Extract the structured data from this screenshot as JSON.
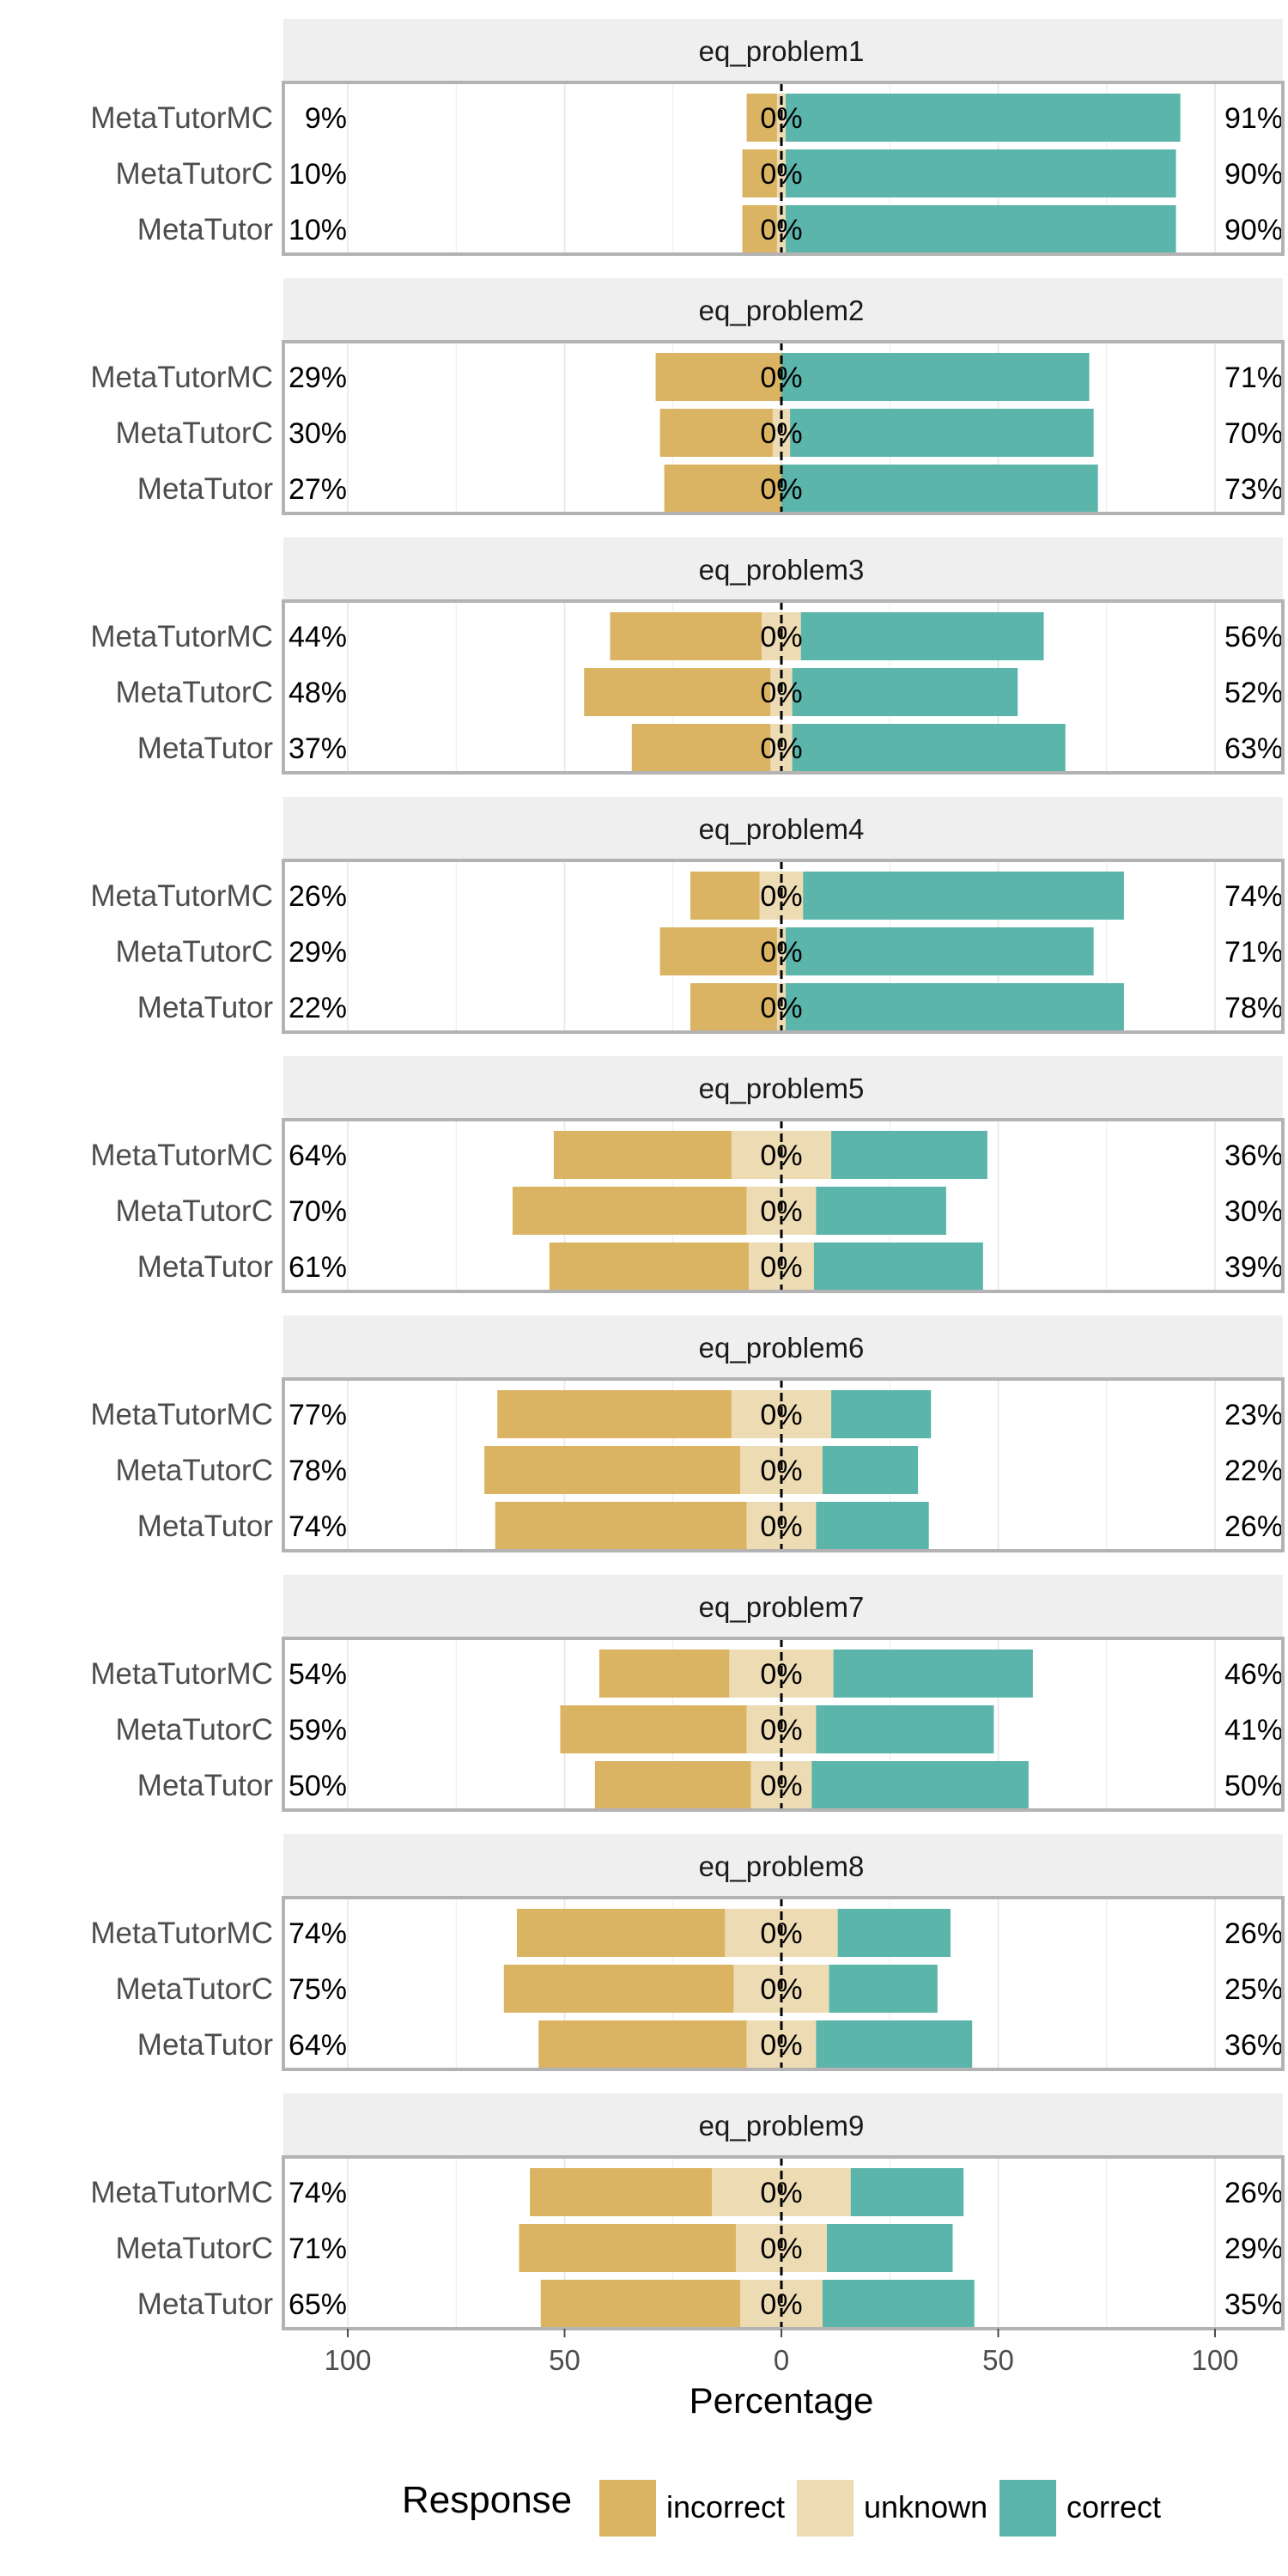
{
  "chart_data": {
    "type": "bar",
    "orientation": "horizontal",
    "stacked": "diverging",
    "xlabel": "Percentage",
    "xlim": [
      -115,
      115
    ],
    "xticks": [
      -100,
      -50,
      0,
      50,
      100
    ],
    "xtick_labels": [
      "100",
      "50",
      "0",
      "50",
      "100"
    ],
    "grid": true,
    "legend": {
      "title": "Response",
      "position": "bottom",
      "entries": [
        "incorrect",
        "unknown",
        "correct"
      ]
    },
    "colors": {
      "incorrect": "#DBB463",
      "unknown": "#EDDBB4",
      "correct": "#5BB5AA",
      "strip_bg": "#EFEFEF",
      "panel_border": "#B3B3B3",
      "grid": "#EBEBEB"
    },
    "categories": [
      "MetaTutorMC",
      "MetaTutorC",
      "MetaTutor"
    ],
    "panels": [
      {
        "title": "eq_problem1",
        "rows": [
          {
            "category": "MetaTutorMC",
            "incorrect": 7,
            "unknown": 2,
            "correct": 91,
            "left_label": "9%",
            "center_label": "0%",
            "right_label": "91%"
          },
          {
            "category": "MetaTutorC",
            "incorrect": 8,
            "unknown": 2,
            "correct": 90,
            "left_label": "10%",
            "center_label": "0%",
            "right_label": "90%"
          },
          {
            "category": "MetaTutor",
            "incorrect": 8,
            "unknown": 2,
            "correct": 90,
            "left_label": "10%",
            "center_label": "0%",
            "right_label": "90%"
          }
        ]
      },
      {
        "title": "eq_problem2",
        "rows": [
          {
            "category": "MetaTutorMC",
            "incorrect": 29,
            "unknown": 0,
            "correct": 71,
            "left_label": "29%",
            "center_label": "0%",
            "right_label": "71%"
          },
          {
            "category": "MetaTutorC",
            "incorrect": 26,
            "unknown": 4,
            "correct": 70,
            "left_label": "30%",
            "center_label": "0%",
            "right_label": "70%"
          },
          {
            "category": "MetaTutor",
            "incorrect": 27,
            "unknown": 0,
            "correct": 73,
            "left_label": "27%",
            "center_label": "0%",
            "right_label": "73%"
          }
        ]
      },
      {
        "title": "eq_problem3",
        "rows": [
          {
            "category": "MetaTutorMC",
            "incorrect": 35,
            "unknown": 9,
            "correct": 56,
            "left_label": "44%",
            "center_label": "0%",
            "right_label": "56%"
          },
          {
            "category": "MetaTutorC",
            "incorrect": 43,
            "unknown": 5,
            "correct": 52,
            "left_label": "48%",
            "center_label": "0%",
            "right_label": "52%"
          },
          {
            "category": "MetaTutor",
            "incorrect": 32,
            "unknown": 5,
            "correct": 63,
            "left_label": "37%",
            "center_label": "0%",
            "right_label": "63%"
          }
        ]
      },
      {
        "title": "eq_problem4",
        "rows": [
          {
            "category": "MetaTutorMC",
            "incorrect": 16,
            "unknown": 10,
            "correct": 74,
            "left_label": "26%",
            "center_label": "0%",
            "right_label": "74%"
          },
          {
            "category": "MetaTutorC",
            "incorrect": 27,
            "unknown": 2,
            "correct": 71,
            "left_label": "29%",
            "center_label": "0%",
            "right_label": "71%"
          },
          {
            "category": "MetaTutor",
            "incorrect": 20,
            "unknown": 2,
            "correct": 78,
            "left_label": "22%",
            "center_label": "0%",
            "right_label": "78%"
          }
        ]
      },
      {
        "title": "eq_problem5",
        "rows": [
          {
            "category": "MetaTutorMC",
            "incorrect": 41,
            "unknown": 23,
            "correct": 36,
            "left_label": "64%",
            "center_label": "0%",
            "right_label": "36%"
          },
          {
            "category": "MetaTutorC",
            "incorrect": 54,
            "unknown": 16,
            "correct": 30,
            "left_label": "70%",
            "center_label": "0%",
            "right_label": "30%"
          },
          {
            "category": "MetaTutor",
            "incorrect": 46,
            "unknown": 15,
            "correct": 39,
            "left_label": "61%",
            "center_label": "0%",
            "right_label": "39%"
          }
        ]
      },
      {
        "title": "eq_problem6",
        "rows": [
          {
            "category": "MetaTutorMC",
            "incorrect": 54,
            "unknown": 23,
            "correct": 23,
            "left_label": "77%",
            "center_label": "0%",
            "right_label": "23%"
          },
          {
            "category": "MetaTutorC",
            "incorrect": 59,
            "unknown": 19,
            "correct": 22,
            "left_label": "78%",
            "center_label": "0%",
            "right_label": "22%"
          },
          {
            "category": "MetaTutor",
            "incorrect": 58,
            "unknown": 16,
            "correct": 26,
            "left_label": "74%",
            "center_label": "0%",
            "right_label": "26%"
          }
        ]
      },
      {
        "title": "eq_problem7",
        "rows": [
          {
            "category": "MetaTutorMC",
            "incorrect": 30,
            "unknown": 24,
            "correct": 46,
            "left_label": "54%",
            "center_label": "0%",
            "right_label": "46%"
          },
          {
            "category": "MetaTutorC",
            "incorrect": 43,
            "unknown": 16,
            "correct": 41,
            "left_label": "59%",
            "center_label": "0%",
            "right_label": "41%"
          },
          {
            "category": "MetaTutor",
            "incorrect": 36,
            "unknown": 14,
            "correct": 50,
            "left_label": "50%",
            "center_label": "0%",
            "right_label": "50%"
          }
        ]
      },
      {
        "title": "eq_problem8",
        "rows": [
          {
            "category": "MetaTutorMC",
            "incorrect": 48,
            "unknown": 26,
            "correct": 26,
            "left_label": "74%",
            "center_label": "0%",
            "right_label": "26%"
          },
          {
            "category": "MetaTutorC",
            "incorrect": 53,
            "unknown": 22,
            "correct": 25,
            "left_label": "75%",
            "center_label": "0%",
            "right_label": "25%"
          },
          {
            "category": "MetaTutor",
            "incorrect": 48,
            "unknown": 16,
            "correct": 36,
            "left_label": "64%",
            "center_label": "0%",
            "right_label": "36%"
          }
        ]
      },
      {
        "title": "eq_problem9",
        "rows": [
          {
            "category": "MetaTutorMC",
            "incorrect": 42,
            "unknown": 32,
            "correct": 26,
            "left_label": "74%",
            "center_label": "0%",
            "right_label": "26%"
          },
          {
            "category": "MetaTutorC",
            "incorrect": 50,
            "unknown": 21,
            "correct": 29,
            "left_label": "71%",
            "center_label": "0%",
            "right_label": "29%"
          },
          {
            "category": "MetaTutor",
            "incorrect": 46,
            "unknown": 19,
            "correct": 35,
            "left_label": "65%",
            "center_label": "0%",
            "right_label": "35%"
          }
        ]
      }
    ]
  }
}
